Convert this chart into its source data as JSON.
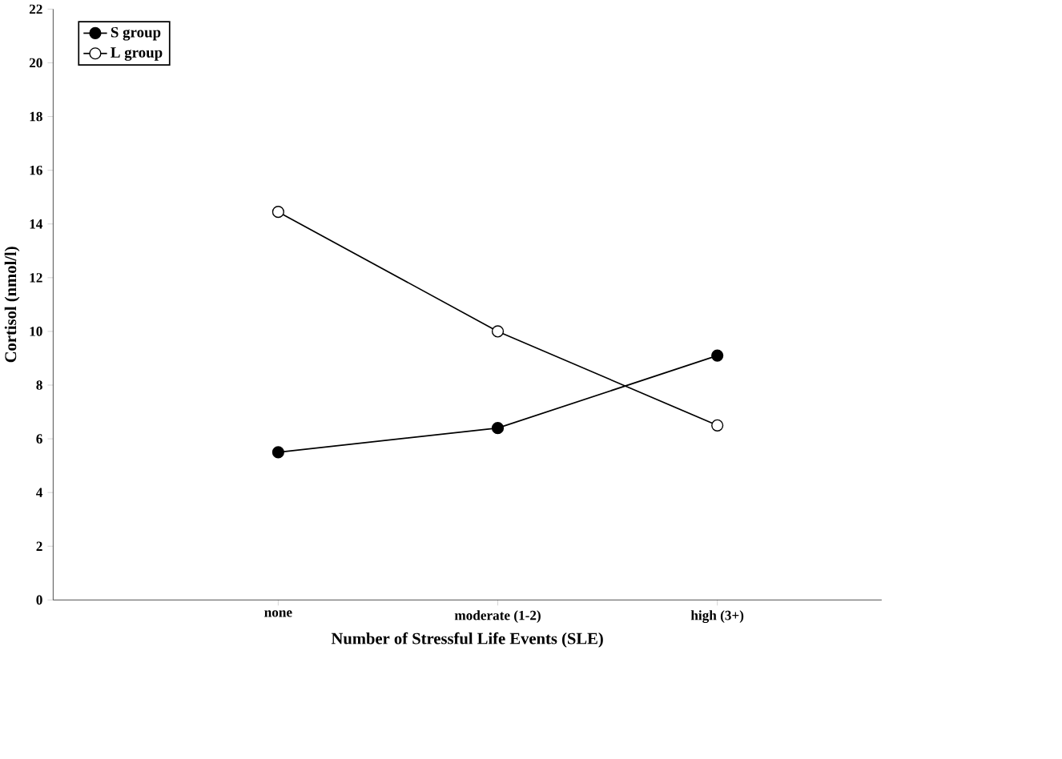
{
  "chart_data": {
    "type": "line",
    "xlabel": "Number of Stressful Life Events (SLE)",
    "ylabel": "Cortisol (nmol/l)",
    "categories": [
      "none",
      "moderate (1-2)",
      "high (3+)"
    ],
    "series": [
      {
        "name": "S group",
        "color": "#000000",
        "values": [
          5.5,
          6.4,
          9.1
        ]
      },
      {
        "name": "L group",
        "color": "#000000",
        "values": [
          14.45,
          10.0,
          6.5
        ]
      }
    ],
    "ylim": [
      0,
      22
    ],
    "yticks": [
      0,
      2,
      4,
      6,
      8,
      10,
      12,
      14,
      16,
      18,
      20,
      22
    ],
    "grid": false,
    "legend": "top left",
    "marker": "circle",
    "line_style": "solid"
  }
}
